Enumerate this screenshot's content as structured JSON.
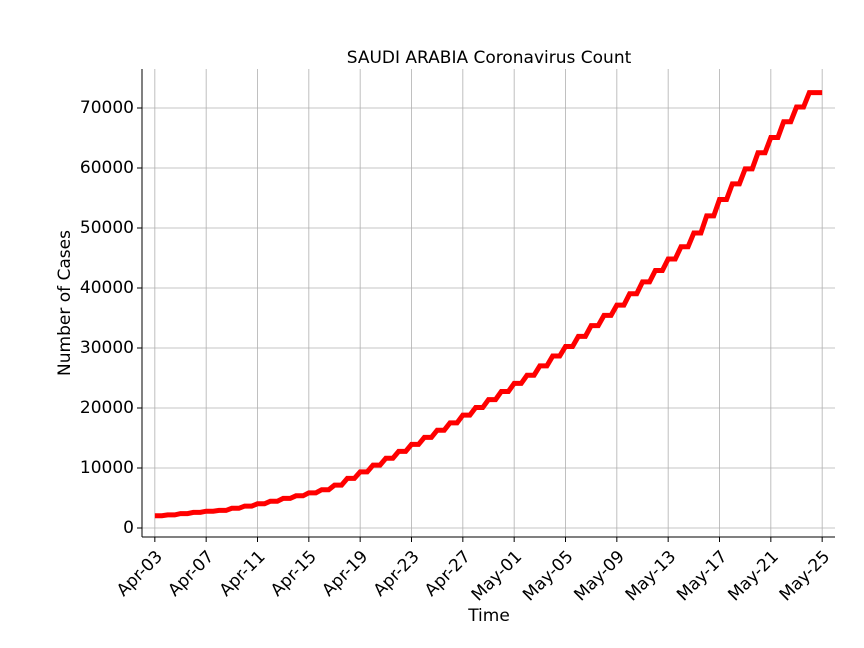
{
  "chart_data": {
    "type": "line",
    "title": "SAUDI ARABIA Coronavirus Count",
    "xlabel": "Time",
    "ylabel": "Number of Cases",
    "x_start": "Apr-03",
    "x_end": "May-25",
    "xlim": [
      "Apr-02",
      "May-26"
    ],
    "ylim": [
      -1500,
      76500
    ],
    "x_ticks": [
      "Apr-03",
      "Apr-07",
      "Apr-11",
      "Apr-15",
      "Apr-19",
      "Apr-23",
      "Apr-27",
      "May-01",
      "May-05",
      "May-09",
      "May-13",
      "May-17",
      "May-21",
      "May-25"
    ],
    "y_ticks": [
      0,
      10000,
      20000,
      30000,
      40000,
      50000,
      60000,
      70000
    ],
    "grid": true,
    "series": [
      {
        "color": "#ff0000",
        "x": [
          "Apr-03",
          "Apr-04",
          "Apr-05",
          "Apr-06",
          "Apr-07",
          "Apr-08",
          "Apr-09",
          "Apr-10",
          "Apr-11",
          "Apr-12",
          "Apr-13",
          "Apr-14",
          "Apr-15",
          "Apr-16",
          "Apr-17",
          "Apr-18",
          "Apr-19",
          "Apr-20",
          "Apr-21",
          "Apr-22",
          "Apr-23",
          "Apr-24",
          "Apr-25",
          "Apr-26",
          "Apr-27",
          "Apr-28",
          "Apr-29",
          "Apr-30",
          "May-01",
          "May-02",
          "May-03",
          "May-04",
          "May-05",
          "May-06",
          "May-07",
          "May-08",
          "May-09",
          "May-10",
          "May-11",
          "May-12",
          "May-13",
          "May-14",
          "May-15",
          "May-16",
          "May-17",
          "May-18",
          "May-19",
          "May-20",
          "May-21",
          "May-22",
          "May-23",
          "May-24",
          "May-25"
        ],
        "values": [
          2039,
          2179,
          2402,
          2605,
          2795,
          2932,
          3287,
          3651,
          4033,
          4462,
          4934,
          5369,
          5862,
          6380,
          7142,
          8274,
          9362,
          10484,
          11631,
          12772,
          13930,
          15102,
          16299,
          17522,
          18811,
          20077,
          21402,
          22753,
          24097,
          25459,
          27011,
          28656,
          30251,
          31938,
          33731,
          35432,
          37136,
          39048,
          41014,
          42925,
          44830,
          46869,
          49176,
          52016,
          54752,
          57345,
          59854,
          62545,
          65077,
          67719,
          70161,
          72560,
          72560
        ]
      }
    ]
  }
}
